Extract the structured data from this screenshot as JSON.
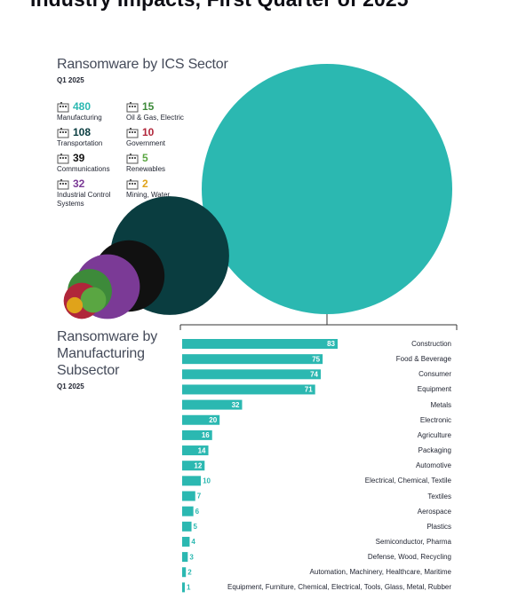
{
  "title": "Industry Impacts, First Quarter of 2025",
  "sector_panel": {
    "title": "Ransomware by ICS Sector",
    "period": "Q1 2025",
    "items": [
      {
        "value": "480",
        "label": "Manufacturing",
        "color": "#2bb8b1",
        "icon": "factory-icon"
      },
      {
        "value": "15",
        "label": "Oil & Gas, Electric",
        "color": "#3d8a3a",
        "icon": "power-tower-icon"
      },
      {
        "value": "108",
        "label": "Transportation",
        "color": "#0a3d40",
        "icon": "train-icon"
      },
      {
        "value": "10",
        "label": "Government",
        "color": "#b0263a",
        "icon": "government-building-icon"
      },
      {
        "value": "39",
        "label": "Communications",
        "color": "#111111",
        "icon": "antenna-icon"
      },
      {
        "value": "5",
        "label": "Renewables",
        "color": "#5aa642",
        "icon": "recycle-icon"
      },
      {
        "value": "32",
        "label": "Industrial Control Systems",
        "color": "#7b3a96",
        "icon": "control-panel-icon"
      },
      {
        "value": "2",
        "label": "Mining, Water",
        "color": "#e0a31a",
        "icon": "mining-cart-icon"
      }
    ]
  },
  "subsector_panel": {
    "title_lines": [
      "Ransomware by",
      "Manufacturing",
      "Subsector"
    ],
    "period": "Q1 2025"
  },
  "chart_data": [
    {
      "type": "bubble",
      "title": "Ransomware by ICS Sector",
      "categories": [
        "Manufacturing",
        "Transportation",
        "Communications",
        "Industrial Control Systems",
        "Oil & Gas, Electric",
        "Government",
        "Renewables",
        "Mining, Water"
      ],
      "values": [
        480,
        108,
        39,
        32,
        15,
        10,
        5,
        2
      ],
      "colors": [
        "#2bb8b1",
        "#0a3d40",
        "#111111",
        "#7b3a96",
        "#3d8a3a",
        "#b0263a",
        "#5aa642",
        "#e0a31a"
      ]
    },
    {
      "type": "bar",
      "orientation": "horizontal",
      "title": "Ransomware by Manufacturing Subsector",
      "categories": [
        "Construction",
        "Food & Beverage",
        "Consumer",
        "Equipment",
        "Metals",
        "Electronic",
        "Agriculture",
        "Packaging",
        "Automotive",
        "Electrical, Chemical, Textile",
        "Textiles",
        "Aerospace",
        "Plastics",
        "Semiconductor, Pharma",
        "Defense, Wood, Recycling",
        "Automation, Machinery, Healthcare, Maritime",
        "Equipment, Furniture, Chemical, Electrical, Tools, Glass, Metal, Rubber"
      ],
      "values": [
        83,
        75,
        74,
        71,
        32,
        20,
        16,
        14,
        12,
        10,
        7,
        6,
        5,
        4,
        3,
        2,
        1
      ],
      "color": "#2bb8b1"
    }
  ]
}
